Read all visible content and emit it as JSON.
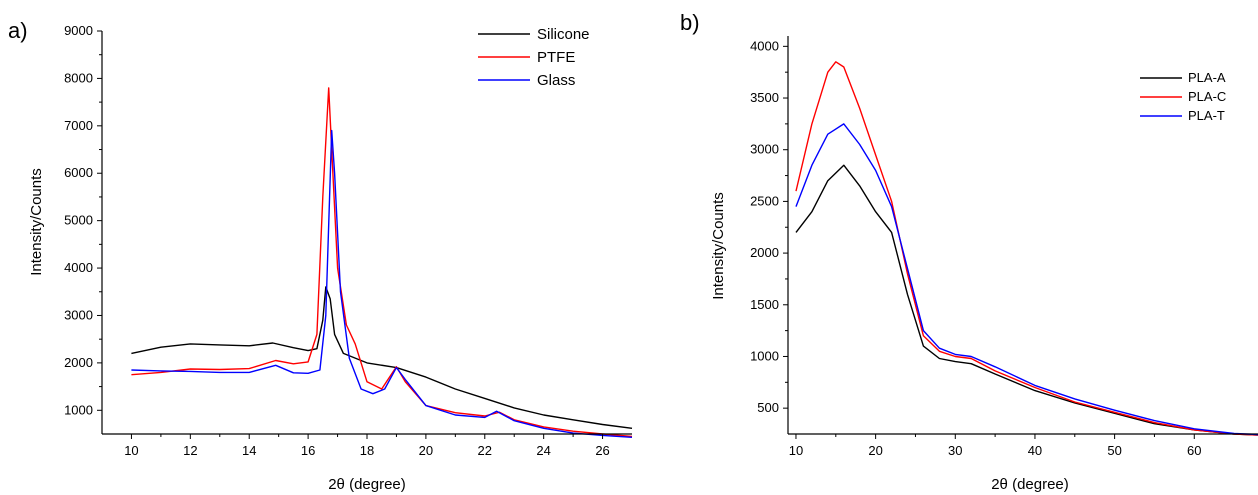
{
  "chart_data": [
    {
      "type": "line",
      "panel_label": "a)",
      "xlabel": "2θ (degree)",
      "ylabel": "Intensity/Counts",
      "xlim": [
        9,
        27
      ],
      "ylim": [
        500,
        9000
      ],
      "xticks": [
        10,
        12,
        14,
        16,
        18,
        20,
        22,
        24,
        26
      ],
      "yticks": [
        1000,
        2000,
        3000,
        4000,
        5000,
        6000,
        7000,
        8000,
        9000
      ],
      "legend_position": "top-right",
      "series": [
        {
          "name": "Silicone",
          "color": "#000000",
          "points": [
            [
              10,
              2200
            ],
            [
              11,
              2330
            ],
            [
              12,
              2400
            ],
            [
              13,
              2380
            ],
            [
              14,
              2360
            ],
            [
              14.8,
              2420
            ],
            [
              15.5,
              2320
            ],
            [
              16.0,
              2260
            ],
            [
              16.3,
              2300
            ],
            [
              16.5,
              2900
            ],
            [
              16.6,
              3600
            ],
            [
              16.75,
              3350
            ],
            [
              16.9,
              2600
            ],
            [
              17.2,
              2200
            ],
            [
              18,
              2000
            ],
            [
              19,
              1900
            ],
            [
              20,
              1700
            ],
            [
              21,
              1450
            ],
            [
              22,
              1250
            ],
            [
              23,
              1050
            ],
            [
              24,
              900
            ],
            [
              25,
              800
            ],
            [
              26,
              700
            ],
            [
              27,
              620
            ]
          ]
        },
        {
          "name": "PTFE",
          "color": "#ff0000",
          "points": [
            [
              10,
              1750
            ],
            [
              11,
              1800
            ],
            [
              12,
              1870
            ],
            [
              13,
              1860
            ],
            [
              14,
              1880
            ],
            [
              14.9,
              2050
            ],
            [
              15.5,
              1980
            ],
            [
              16.0,
              2020
            ],
            [
              16.3,
              2600
            ],
            [
              16.5,
              5500
            ],
            [
              16.7,
              7800
            ],
            [
              16.8,
              6500
            ],
            [
              17.0,
              4000
            ],
            [
              17.3,
              2800
            ],
            [
              17.6,
              2400
            ],
            [
              18.0,
              1600
            ],
            [
              18.5,
              1450
            ],
            [
              19.0,
              1920
            ],
            [
              19.3,
              1600
            ],
            [
              20,
              1100
            ],
            [
              21,
              950
            ],
            [
              22,
              880
            ],
            [
              22.5,
              960
            ],
            [
              23,
              800
            ],
            [
              24,
              650
            ],
            [
              25,
              560
            ],
            [
              26,
              500
            ],
            [
              27,
              450
            ]
          ]
        },
        {
          "name": "Glass",
          "color": "#0000ff",
          "points": [
            [
              10,
              1850
            ],
            [
              11,
              1830
            ],
            [
              12,
              1820
            ],
            [
              13,
              1800
            ],
            [
              14,
              1800
            ],
            [
              14.9,
              1950
            ],
            [
              15.5,
              1790
            ],
            [
              16.0,
              1780
            ],
            [
              16.4,
              1850
            ],
            [
              16.6,
              3000
            ],
            [
              16.8,
              6900
            ],
            [
              16.9,
              6000
            ],
            [
              17.1,
              3500
            ],
            [
              17.4,
              2100
            ],
            [
              17.8,
              1450
            ],
            [
              18.2,
              1350
            ],
            [
              18.6,
              1450
            ],
            [
              19.0,
              1900
            ],
            [
              19.3,
              1650
            ],
            [
              20,
              1100
            ],
            [
              21,
              900
            ],
            [
              22,
              850
            ],
            [
              22.4,
              980
            ],
            [
              23,
              780
            ],
            [
              24,
              620
            ],
            [
              25,
              520
            ],
            [
              26,
              470
            ],
            [
              27,
              430
            ]
          ]
        }
      ]
    },
    {
      "type": "line",
      "panel_label": "b)",
      "xlabel": "2θ (degree)",
      "ylabel": "Intensity/Counts",
      "xlim": [
        9,
        68
      ],
      "ylim": [
        250,
        4100
      ],
      "xticks": [
        10,
        20,
        30,
        40,
        50,
        60
      ],
      "yticks": [
        500,
        1000,
        1500,
        2000,
        2500,
        3000,
        3500,
        4000
      ],
      "legend_position": "top-right",
      "series": [
        {
          "name": "PLA-A",
          "color": "#000000",
          "points": [
            [
              10,
              2200
            ],
            [
              12,
              2400
            ],
            [
              14,
              2700
            ],
            [
              16,
              2850
            ],
            [
              18,
              2650
            ],
            [
              20,
              2400
            ],
            [
              22,
              2200
            ],
            [
              24,
              1600
            ],
            [
              26,
              1100
            ],
            [
              28,
              980
            ],
            [
              30,
              950
            ],
            [
              32,
              930
            ],
            [
              35,
              830
            ],
            [
              40,
              670
            ],
            [
              45,
              550
            ],
            [
              50,
              450
            ],
            [
              55,
              350
            ],
            [
              60,
              290
            ],
            [
              65,
              250
            ],
            [
              68,
              240
            ]
          ]
        },
        {
          "name": "PLA-C",
          "color": "#ff0000",
          "points": [
            [
              10,
              2600
            ],
            [
              12,
              3250
            ],
            [
              14,
              3750
            ],
            [
              15,
              3850
            ],
            [
              16,
              3800
            ],
            [
              18,
              3400
            ],
            [
              20,
              2950
            ],
            [
              22,
              2500
            ],
            [
              24,
              1800
            ],
            [
              26,
              1200
            ],
            [
              28,
              1050
            ],
            [
              30,
              1000
            ],
            [
              32,
              980
            ],
            [
              35,
              860
            ],
            [
              40,
              700
            ],
            [
              45,
              560
            ],
            [
              50,
              460
            ],
            [
              55,
              360
            ],
            [
              60,
              290
            ],
            [
              65,
              250
            ],
            [
              68,
              240
            ]
          ]
        },
        {
          "name": "PLA-T",
          "color": "#0000ff",
          "points": [
            [
              10,
              2450
            ],
            [
              12,
              2850
            ],
            [
              14,
              3150
            ],
            [
              16,
              3250
            ],
            [
              18,
              3050
            ],
            [
              20,
              2800
            ],
            [
              22,
              2450
            ],
            [
              24,
              1850
            ],
            [
              26,
              1250
            ],
            [
              28,
              1080
            ],
            [
              30,
              1020
            ],
            [
              32,
              1000
            ],
            [
              35,
              900
            ],
            [
              40,
              720
            ],
            [
              45,
              590
            ],
            [
              50,
              480
            ],
            [
              55,
              380
            ],
            [
              60,
              300
            ],
            [
              65,
              255
            ],
            [
              68,
              245
            ]
          ]
        }
      ]
    }
  ]
}
